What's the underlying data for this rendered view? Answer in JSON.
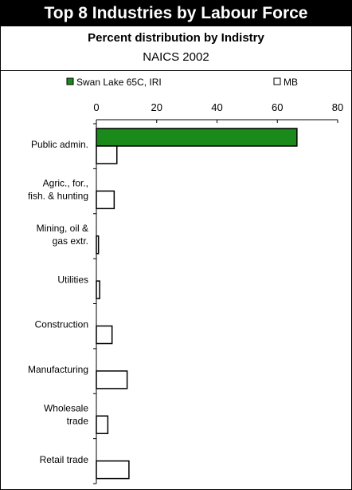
{
  "chart_data": {
    "type": "bar",
    "orientation": "horizontal",
    "title": "Top 8 Industries by Labour Force",
    "subtitle": "Percent distribution by Indistry",
    "subtitle2": "NAICS 2002",
    "categories": [
      [
        "Public admin."
      ],
      [
        "Agric., for.,",
        "fish. & hunting"
      ],
      [
        "Mining, oil &",
        "gas extr."
      ],
      [
        "Utilities"
      ],
      [
        "Construction"
      ],
      [
        "Manufacturing"
      ],
      [
        "Wholesale",
        "trade"
      ],
      [
        "Retail trade"
      ]
    ],
    "series": [
      {
        "name": "Swan Lake 65C, IRI",
        "color": "#1a8a1a",
        "values": [
          66.5,
          0,
          0,
          0,
          0,
          0,
          0,
          0
        ]
      },
      {
        "name": "MB",
        "color": "#ffffff",
        "values": [
          6.8,
          5.9,
          0.7,
          1.1,
          5.2,
          10.2,
          3.8,
          10.8
        ]
      }
    ],
    "xlim": [
      0,
      80
    ],
    "xticks": [
      "0",
      "20",
      "40",
      "60",
      "80"
    ],
    "legend_position": "top"
  }
}
